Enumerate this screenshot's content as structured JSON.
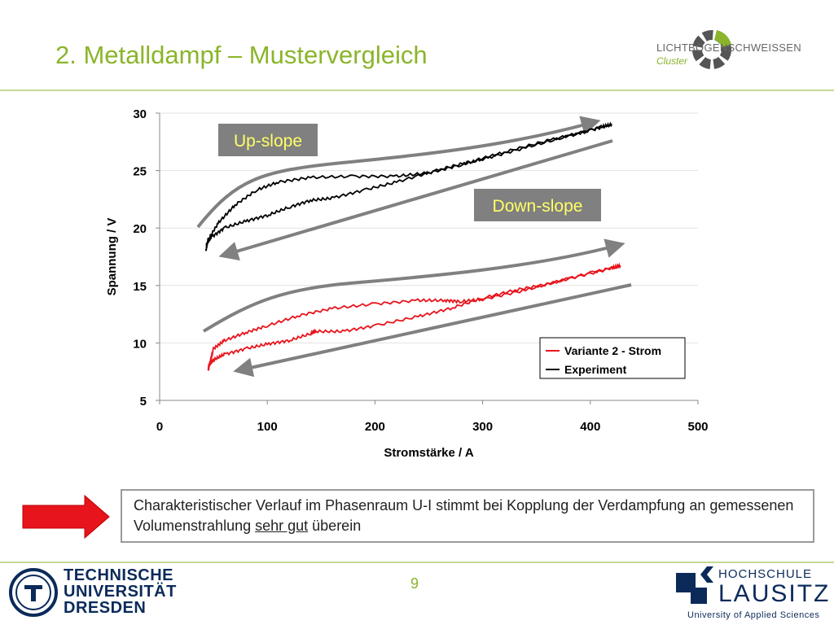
{
  "slide": {
    "title": "2. Metalldampf – Mustervergleich",
    "page_number": "9",
    "note_text_1": "Charakteristischer Verlauf im Phasenraum U-I stimmt bei Kopplung der Verdampfung an gemessenen Volumenstrahlung ",
    "note_underlined": "sehr gut",
    "note_text_2": " überein"
  },
  "logos": {
    "cluster_name": "LICHTBOGENSCHWEISSEN",
    "cluster_sub": "Cluster",
    "tud_line1": "TECHNISCHE",
    "tud_line2": "UNIVERSITÄT",
    "tud_line3": "DRESDEN",
    "hl_line1": "HOCHSCHULE",
    "hl_line2": "LAUSITZ",
    "hl_line3": "University of Applied Sciences"
  },
  "colors": {
    "accent": "#8ab52a",
    "variante": "#e8141c",
    "experiment": "#000000",
    "guide_arrow": "#808080",
    "label_box": "#808080",
    "up_label_text": "#ffff66",
    "down_label_text": "#ffff66",
    "red_arrow": "#e8141c"
  },
  "chart_data": {
    "type": "line",
    "xlabel": "Stromstärke / A",
    "ylabel": "Spannung / V",
    "xlim": [
      0,
      500
    ],
    "ylim": [
      5,
      30
    ],
    "xticks": [
      0,
      100,
      200,
      300,
      400,
      500
    ],
    "yticks": [
      5,
      10,
      15,
      20,
      25,
      30
    ],
    "grid": true,
    "legend_position": "bottom-right",
    "annotations": [
      "Up-slope",
      "Down-slope"
    ],
    "series": [
      {
        "name": "Variante 2 - Strom",
        "color": "#e8141c",
        "up_x": [
          45,
          50,
          60,
          80,
          100,
          130,
          160,
          200,
          240,
          265,
          280,
          300,
          340,
          380,
          420,
          428
        ],
        "up_y": [
          7.6,
          9.5,
          10.2,
          10.9,
          11.5,
          12.4,
          13.0,
          13.4,
          13.7,
          13.7,
          13.6,
          13.8,
          14.6,
          15.6,
          16.5,
          16.7
        ],
        "down_x": [
          428,
          400,
          360,
          330,
          300,
          270,
          240,
          200,
          170,
          145,
          140,
          120,
          100,
          80,
          60,
          50,
          45
        ],
        "down_y": [
          16.7,
          16.1,
          15.1,
          14.6,
          13.9,
          13.0,
          12.3,
          11.5,
          11.0,
          11.0,
          10.8,
          10.2,
          9.9,
          9.5,
          9.0,
          8.5,
          8.0
        ]
      },
      {
        "name": "Experiment",
        "color": "#000000",
        "up_x": [
          43,
          45,
          55,
          70,
          90,
          110,
          140,
          180,
          220,
          250,
          280,
          300,
          340,
          380,
          410,
          420
        ],
        "up_y": [
          18.0,
          19.0,
          20.5,
          22.0,
          23.3,
          24.0,
          24.4,
          24.5,
          24.5,
          24.8,
          25.5,
          26.0,
          27.0,
          28.0,
          28.8,
          29.0
        ],
        "down_x": [
          420,
          400,
          360,
          320,
          290,
          260,
          220,
          190,
          160,
          140,
          120,
          100,
          80,
          60,
          48,
          43
        ],
        "down_y": [
          29.0,
          28.5,
          27.6,
          26.6,
          25.8,
          25.1,
          24.0,
          23.3,
          22.6,
          22.4,
          21.8,
          21.1,
          20.6,
          20.0,
          19.2,
          18.5
        ]
      }
    ]
  }
}
